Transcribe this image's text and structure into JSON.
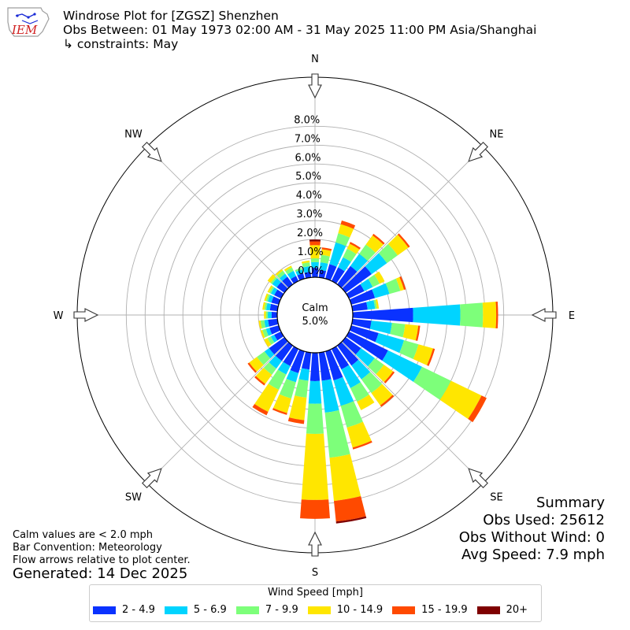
{
  "header": {
    "logo_text": "IEM",
    "title": "Windrose Plot for [ZGSZ] Shenzhen",
    "obs_between": "Obs Between: 01 May 1973 02:00 AM - 31 May 2025 11:00 PM Asia/Shanghai",
    "constraints": "↳ constraints: May"
  },
  "summary": {
    "title": "Summary",
    "obs_used": "Obs Used: 25612",
    "obs_without_wind": "Obs Without Wind: 0",
    "avg_speed": "Avg Speed: 7.9 mph"
  },
  "notes": {
    "calm_note": "Calm values are < 2.0 mph",
    "bar_convention": "Bar Convention: Meteorology",
    "flow_arrows": "Flow arrows relative to plot center.",
    "generated": "Generated: 14 Dec 2025"
  },
  "legend": {
    "title": "Wind Speed [mph]",
    "items": [
      {
        "label": "2 - 4.9",
        "color": "#0a32ff"
      },
      {
        "label": "5 - 6.9",
        "color": "#00d4ff"
      },
      {
        "label": "7 - 9.9",
        "color": "#7dff7a"
      },
      {
        "label": "10 - 14.9",
        "color": "#ffe600"
      },
      {
        "label": "15 - 19.9",
        "color": "#ff4a00"
      },
      {
        "label": "20+",
        "color": "#7f0000"
      }
    ]
  },
  "chart_data": {
    "type": "windrose",
    "calm": {
      "label": "Calm",
      "value": "5.0%"
    },
    "radial_ticks": [
      "0.0%",
      "1.0%",
      "2.0%",
      "3.0%",
      "4.0%",
      "5.0%",
      "6.0%",
      "7.0%",
      "8.0%"
    ],
    "rmax_percent": 10.6,
    "compass": {
      "N": "N",
      "NE": "NE",
      "E": "E",
      "SE": "SE",
      "S": "S",
      "SW": "SW",
      "W": "W",
      "NW": "NW"
    },
    "speed_bins": [
      "2 - 4.9",
      "5 - 6.9",
      "7 - 9.9",
      "10 - 14.9",
      "15 - 19.9",
      "20+"
    ],
    "directions_deg": [
      0,
      10,
      20,
      30,
      40,
      50,
      60,
      70,
      80,
      90,
      100,
      110,
      120,
      130,
      140,
      150,
      160,
      170,
      180,
      190,
      200,
      210,
      220,
      230,
      240,
      250,
      260,
      270,
      280,
      290,
      300,
      310,
      320,
      330,
      340,
      350
    ],
    "cumulative_percent": [
      [
        0.5,
        0.8,
        1.0,
        1.7,
        1.9,
        2.0
      ],
      [
        0.4,
        0.8,
        1.2,
        1.5,
        1.6,
        1.6
      ],
      [
        0.8,
        2.0,
        2.5,
        3.0,
        3.2,
        3.2
      ],
      [
        0.8,
        1.4,
        1.9,
        2.2,
        2.3,
        2.3
      ],
      [
        1.2,
        2.0,
        2.6,
        3.2,
        3.3,
        3.3
      ],
      [
        1.7,
        2.7,
        3.4,
        4.1,
        4.2,
        4.2
      ],
      [
        0.9,
        1.4,
        1.8,
        2.1,
        2.1,
        2.1
      ],
      [
        1.3,
        2.1,
        2.7,
        2.9,
        3.0,
        3.0
      ],
      [
        0.8,
        1.2,
        1.3,
        1.4,
        1.4,
        1.4
      ],
      [
        3.2,
        5.7,
        6.9,
        7.6,
        7.7,
        7.7
      ],
      [
        1.0,
        2.1,
        2.8,
        3.5,
        3.6,
        3.6
      ],
      [
        1.5,
        2.9,
        3.7,
        4.5,
        4.6,
        4.6
      ],
      [
        2.3,
        4.3,
        6.0,
        7.8,
        8.1,
        8.1
      ],
      [
        1.0,
        1.9,
        2.5,
        3.1,
        3.2,
        3.2
      ],
      [
        1.3,
        2.2,
        3.1,
        3.9,
        4.0,
        4.0
      ],
      [
        1.2,
        2.3,
        3.1,
        3.6,
        3.6,
        3.6
      ],
      [
        1.6,
        3.0,
        4.2,
        5.3,
        5.4,
        5.4
      ],
      [
        1.5,
        3.2,
        5.6,
        7.9,
        9.0,
        9.1
      ],
      [
        1.5,
        2.7,
        4.3,
        7.8,
        8.8,
        8.8
      ],
      [
        0.9,
        1.5,
        2.4,
        3.6,
        3.8,
        3.8
      ],
      [
        1.2,
        1.7,
        2.6,
        3.4,
        3.5,
        3.5
      ],
      [
        1.0,
        1.5,
        2.4,
        3.7,
        3.9,
        3.9
      ],
      [
        1.0,
        1.5,
        1.9,
        2.5,
        2.6,
        2.6
      ],
      [
        1.0,
        1.3,
        1.8,
        2.3,
        2.4,
        2.4
      ],
      [
        0.4,
        0.6,
        0.8,
        1.0,
        1.0,
        1.0
      ],
      [
        0.5,
        0.7,
        0.9,
        1.0,
        1.0,
        1.0
      ],
      [
        0.5,
        0.7,
        0.9,
        1.0,
        1.0,
        1.0
      ],
      [
        0.3,
        0.5,
        0.6,
        0.7,
        0.7,
        0.7
      ],
      [
        0.4,
        0.6,
        0.7,
        0.8,
        0.8,
        0.8
      ],
      [
        0.4,
        0.6,
        0.7,
        0.8,
        0.8,
        0.8
      ],
      [
        0.4,
        0.6,
        0.7,
        0.8,
        0.8,
        0.8
      ],
      [
        0.5,
        0.8,
        0.9,
        1.1,
        1.1,
        1.1
      ],
      [
        0.5,
        0.7,
        0.9,
        1.0,
        1.0,
        1.0
      ],
      [
        0.3,
        0.6,
        0.8,
        0.9,
        0.9,
        0.9
      ],
      [
        0.3,
        0.5,
        0.6,
        0.6,
        0.6,
        0.6
      ],
      [
        0.3,
        0.6,
        0.8,
        0.9,
        0.9,
        0.9
      ]
    ]
  }
}
